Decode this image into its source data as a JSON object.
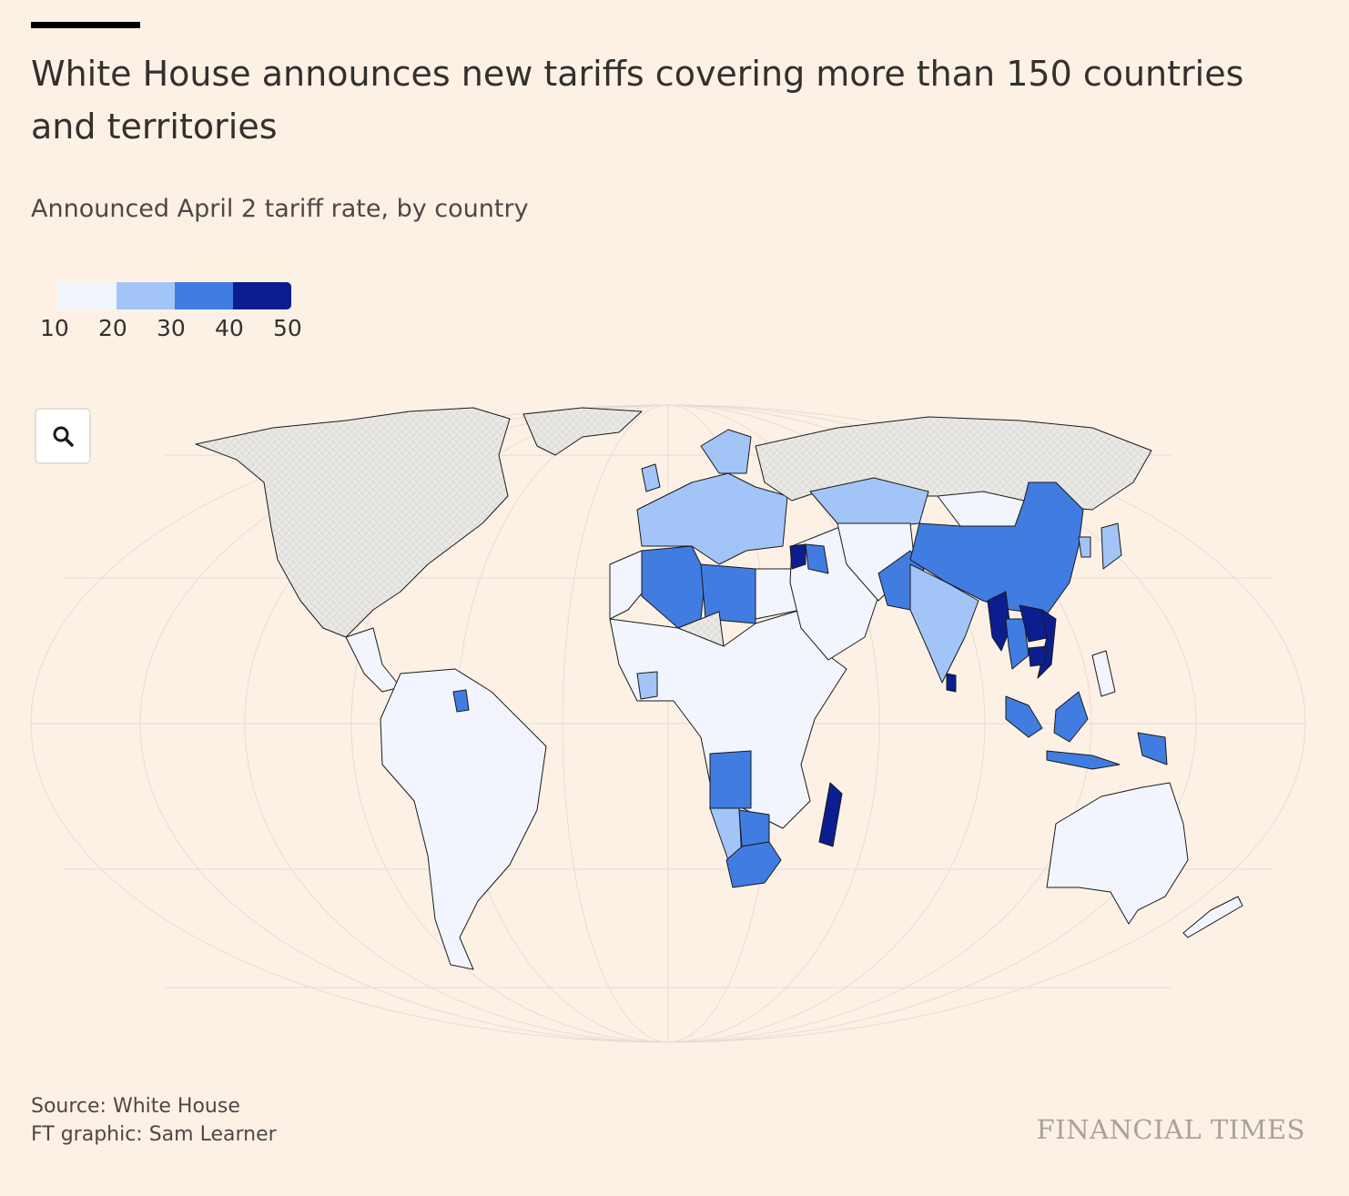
{
  "header": {
    "title": "White House announces new tariffs covering more than 150 countries and territories",
    "subtitle": "Announced April 2 tariff rate, by country"
  },
  "legend": {
    "ticks": [
      "10",
      "20",
      "30",
      "40",
      "50"
    ],
    "colors": [
      "#f2f5fd",
      "#a3c4f7",
      "#417ce0",
      "#0c1e8f"
    ]
  },
  "map_controls": {
    "zoom_icon": "search-icon"
  },
  "colors": {
    "background": "#fdf1e6",
    "no_data": "#e8e6e3",
    "land_stroke": "#1a1a1a",
    "graticule": "#e4dcd2"
  },
  "footer": {
    "source": "Source: White House",
    "credit": "FT graphic: Sam Learner",
    "brand": "FINANCIAL TIMES"
  }
}
